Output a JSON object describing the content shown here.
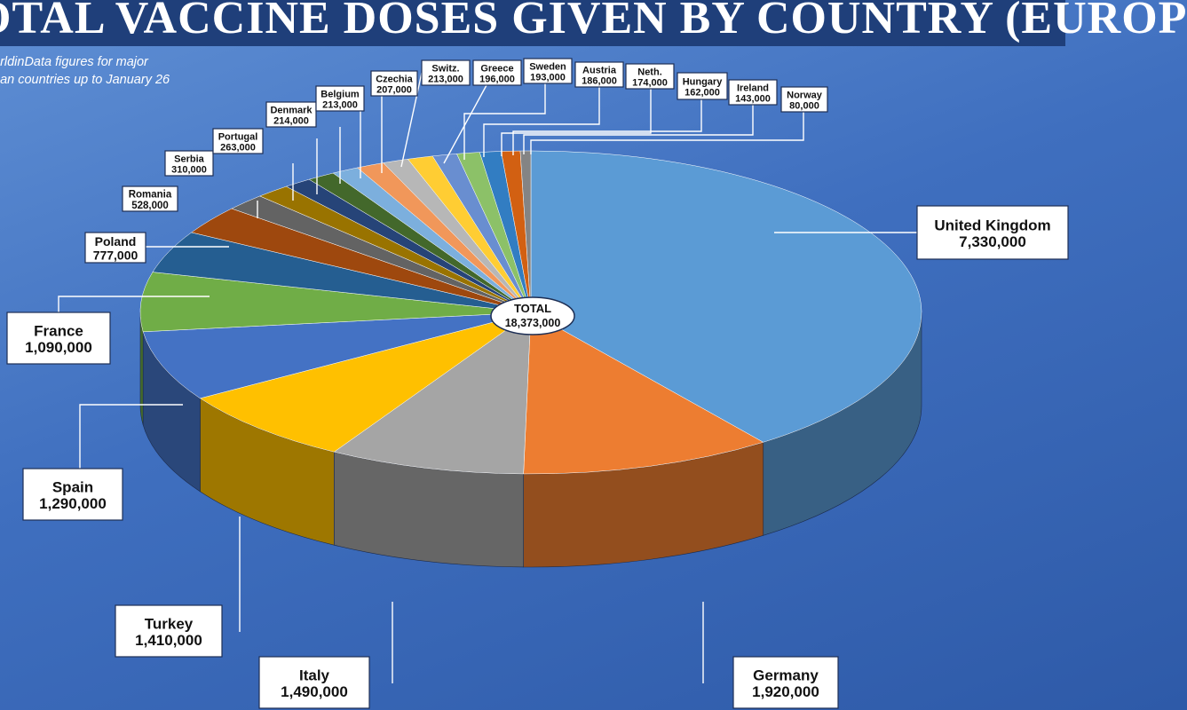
{
  "header": {
    "title": "OTAL VACCINE DOSES GIVEN BY COUNTRY (EUROP",
    "subtitle_line1": "orldinData figures for major",
    "subtitle_line2": "ean countries up to January 26"
  },
  "chart_data": {
    "type": "pie",
    "title": "OTAL VACCINE DOSES GIVEN BY COUNTRY (EUROP",
    "total_label": "TOTAL",
    "total_value": "18,373,000",
    "categories": [
      "United Kingdom",
      "Germany",
      "Italy",
      "Turkey",
      "Spain",
      "France",
      "Poland",
      "Romania",
      "Serbia",
      "Portugal",
      "Denmark",
      "Belgium",
      "Czechia",
      "Switz.",
      "Greece",
      "Sweden",
      "Austria",
      "Neth.",
      "Hungary",
      "Ireland",
      "Norway"
    ],
    "values": [
      7330000,
      1920000,
      1490000,
      1410000,
      1290000,
      1090000,
      777000,
      528000,
      310000,
      263000,
      214000,
      213000,
      207000,
      213000,
      196000,
      193000,
      186000,
      174000,
      162000,
      143000,
      80000
    ],
    "value_labels": [
      "7,330,000",
      "1,920,000",
      "1,490,000",
      "1,410,000",
      "1,290,000",
      "1,090,000",
      "777,000",
      "528,000",
      "310,000",
      "263,000",
      "214,000",
      "213,000",
      "207,000",
      "213,000",
      "196,000",
      "193,000",
      "186,000",
      "174,000",
      "162,000",
      "143,000",
      "80,000"
    ],
    "colors": [
      "#5b9bd5",
      "#ed7d31",
      "#a5a5a5",
      "#ffc000",
      "#4472c4",
      "#70ad47",
      "#255e91",
      "#9e480e",
      "#636363",
      "#997300",
      "#264478",
      "#43682b",
      "#7cafdd",
      "#f1975a",
      "#b7b7b7",
      "#ffcd33",
      "#698ed0",
      "#8cc168",
      "#327dc2",
      "#d26012",
      "#848484"
    ]
  }
}
